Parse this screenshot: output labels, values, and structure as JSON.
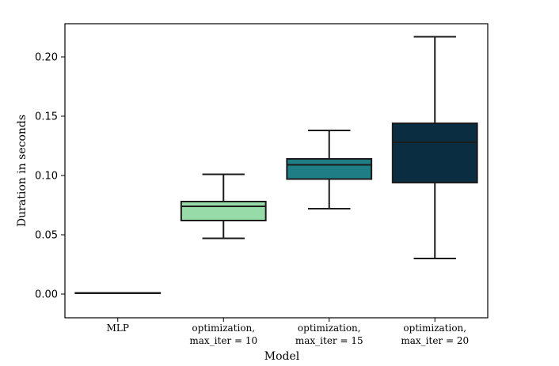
{
  "chart_data": {
    "type": "box",
    "title": "",
    "xlabel": "Model",
    "ylabel": "Duration in seconds",
    "ylim": [
      -0.02,
      0.228
    ],
    "yticks": [
      "0.00",
      "0.05",
      "0.10",
      "0.15",
      "0.20"
    ],
    "grid": false,
    "legend": "none",
    "categories": [
      [
        "MLP"
      ],
      [
        "optimization,",
        "max_iter = 10"
      ],
      [
        "optimization,",
        "max_iter = 15"
      ],
      [
        "optimization,",
        "max_iter = 20"
      ]
    ],
    "series": [
      {
        "category": "MLP",
        "whisker_low": 0.001,
        "q1": 0.001,
        "median": 0.001,
        "q3": 0.001,
        "whisker_high": 0.001,
        "color": "#1a1a1a"
      },
      {
        "category": "optimization, max_iter = 10",
        "whisker_low": 0.047,
        "q1": 0.062,
        "median": 0.074,
        "q3": 0.078,
        "whisker_high": 0.101,
        "color": "#96dba8"
      },
      {
        "category": "optimization, max_iter = 15",
        "whisker_low": 0.072,
        "q1": 0.097,
        "median": 0.109,
        "q3": 0.114,
        "whisker_high": 0.138,
        "color": "#1f7d86"
      },
      {
        "category": "optimization, max_iter = 20",
        "whisker_low": 0.03,
        "q1": 0.094,
        "median": 0.128,
        "q3": 0.144,
        "whisker_high": 0.217,
        "color": "#0b2d42"
      }
    ]
  }
}
